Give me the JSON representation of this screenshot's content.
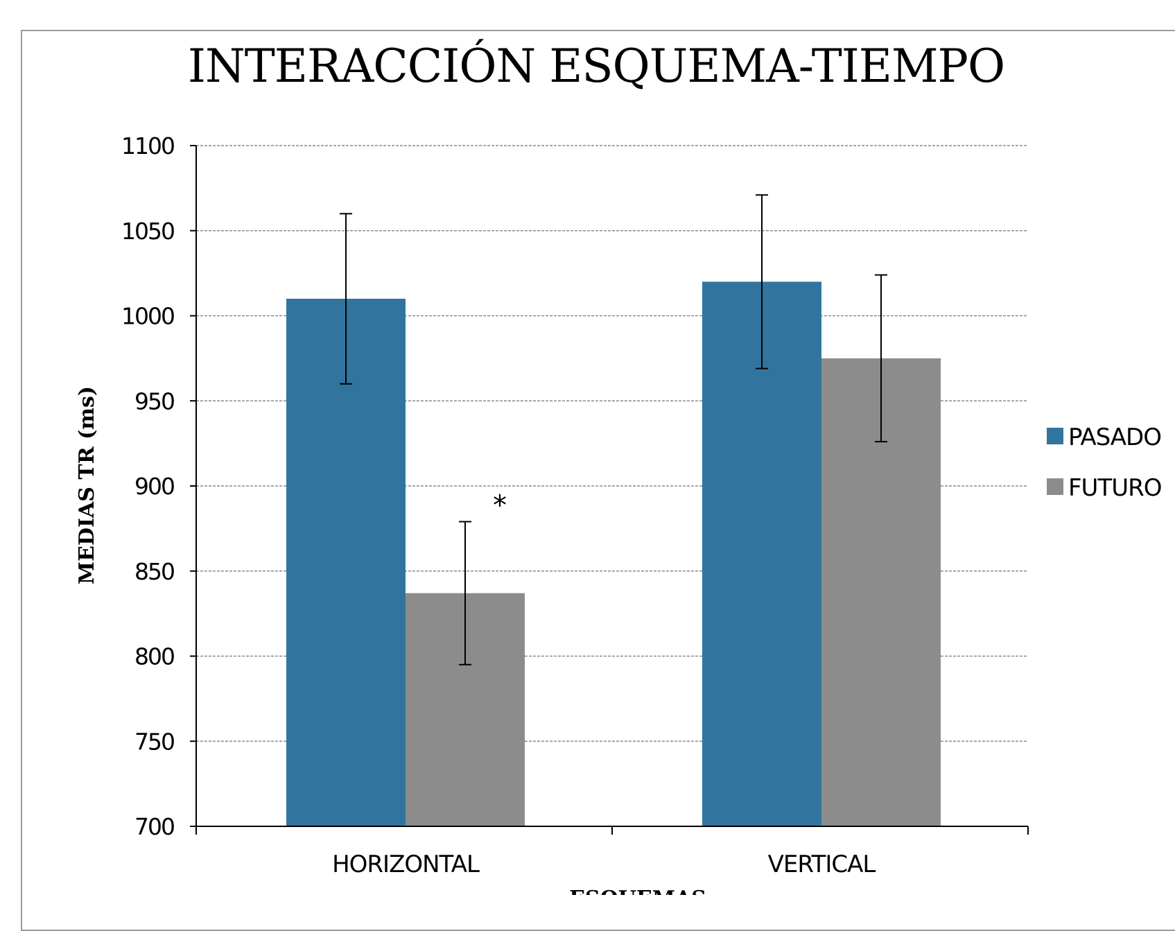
{
  "chart_data": {
    "type": "bar",
    "title": "INTERACCIÓN ESQUEMA-TIEMPO",
    "xlabel": "ESQUEMAS",
    "ylabel": "MEDIAS TR (ms)",
    "categories": [
      "HORIZONTAL",
      "VERTICAL"
    ],
    "series": [
      {
        "name": "PASADO",
        "color": "#31759f",
        "values": [
          1010,
          1020
        ],
        "error": [
          50,
          51
        ]
      },
      {
        "name": "FUTURO",
        "color": "#8c8c8c",
        "values": [
          837,
          975
        ],
        "error": [
          42,
          49
        ]
      }
    ],
    "ylim": [
      700,
      1100
    ],
    "yticks": [
      700,
      750,
      800,
      850,
      900,
      950,
      1000,
      1050,
      1100
    ],
    "grid": true,
    "legend_position": "right",
    "annotations": [
      {
        "text": "*",
        "category": "HORIZONTAL",
        "series": "FUTURO"
      }
    ]
  }
}
